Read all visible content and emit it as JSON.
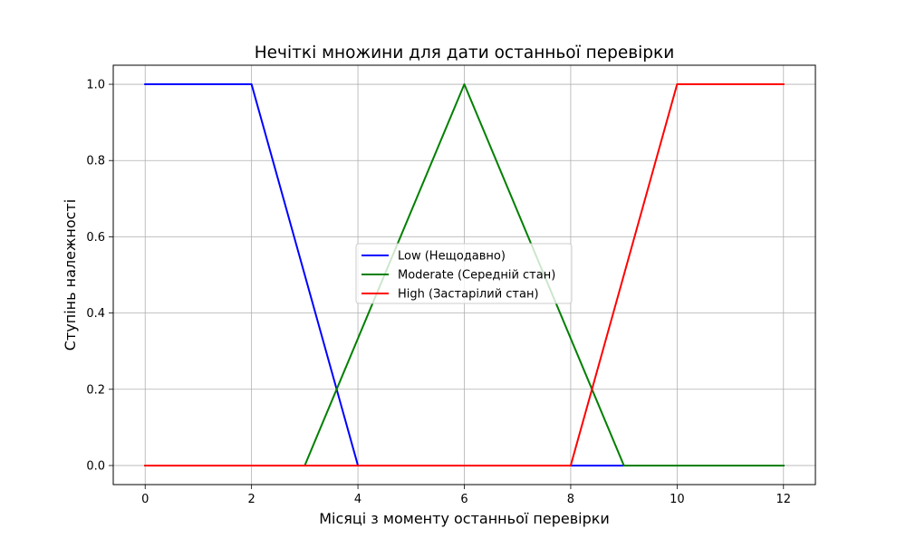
{
  "chart_data": {
    "type": "line",
    "title": "Нечіткі множини для дати останньої перевірки",
    "xlabel": "Місяці з моменту останньої перевірки",
    "ylabel": "Ступінь належності",
    "xlim": [
      -0.6,
      12.6
    ],
    "ylim": [
      -0.05,
      1.05
    ],
    "xticks": [
      0,
      2,
      4,
      6,
      8,
      10,
      12
    ],
    "yticks": [
      0.0,
      0.2,
      0.4,
      0.6,
      0.8,
      1.0
    ],
    "xtick_labels": [
      "0",
      "2",
      "4",
      "6",
      "8",
      "10",
      "12"
    ],
    "ytick_labels": [
      "0.0",
      "0.2",
      "0.4",
      "0.6",
      "0.8",
      "1.0"
    ],
    "grid": true,
    "legend_position": "center",
    "series": [
      {
        "name": "Low (Нещодавно)",
        "color": "#0000ff",
        "x": [
          0,
          2,
          4,
          12
        ],
        "y": [
          1,
          1,
          0,
          0
        ]
      },
      {
        "name": "Moderate (Середній стан)",
        "color": "#008000",
        "x": [
          0,
          3,
          6,
          9,
          12
        ],
        "y": [
          0,
          0,
          1,
          0,
          0
        ]
      },
      {
        "name": "High (Застарілий стан)",
        "color": "#ff0000",
        "x": [
          0,
          8,
          10,
          12
        ],
        "y": [
          0,
          0,
          1,
          1
        ]
      }
    ]
  }
}
